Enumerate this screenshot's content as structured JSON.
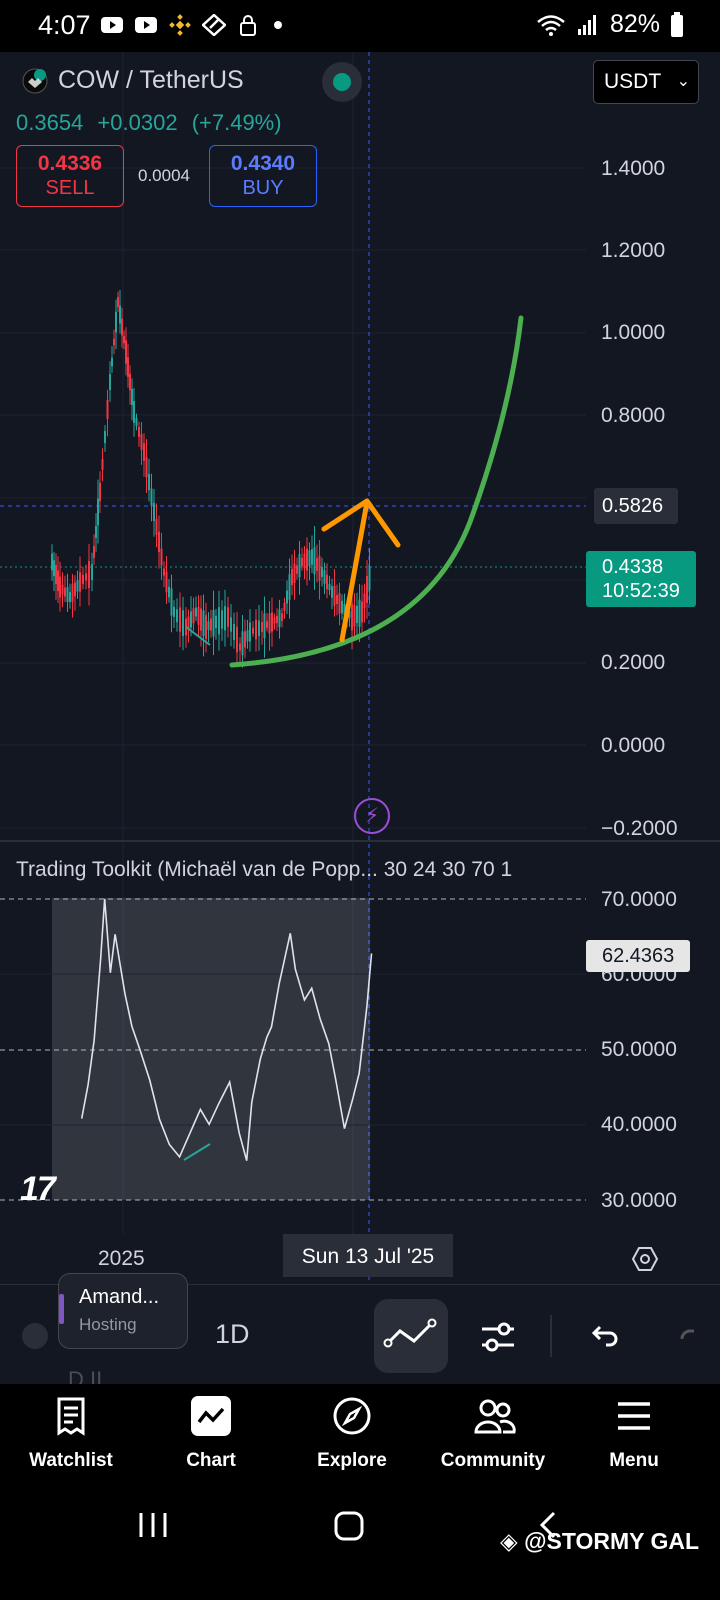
{
  "status_bar": {
    "time": "4:07",
    "battery": "82%",
    "icons": [
      "youtube-icon",
      "youtube-icon",
      "binance-icon",
      "app-icon",
      "lock-icon",
      "dot-icon",
      "wifi-icon",
      "signal-icon",
      "battery-icon"
    ]
  },
  "symbol": {
    "name": "COW / TetherUS",
    "last": "0.3654",
    "change": "+0.0302",
    "change_pct": "(+7.49%)"
  },
  "trade": {
    "sell_price": "0.4336",
    "sell_label": "SELL",
    "spread": "0.0004",
    "buy_price": "0.4340",
    "buy_label": "BUY"
  },
  "currency_select": {
    "value": "USDT"
  },
  "price_axis": [
    "1.4000",
    "1.2000",
    "1.0000",
    "0.8000",
    "0.2000",
    "0.0000",
    "−0.2000"
  ],
  "crosshair_price": "0.5826",
  "live_price": {
    "price": "0.4338",
    "countdown": "10:52:39"
  },
  "indicator": {
    "title": "Trading Toolkit (Michaël van de Popp... 30 24 30 70 1",
    "axis": [
      "70.0000",
      "60.0000",
      "50.0000",
      "40.0000",
      "30.0000"
    ],
    "current_value": "62.4363"
  },
  "time_axis": {
    "label_2025": "2025",
    "crosshair_date": "Sun 13 Jul '25"
  },
  "toolbar": {
    "account_name": "Amand...",
    "account_sub": "Hosting",
    "interval": "1D",
    "ghost_text": "D II"
  },
  "bottom_nav": [
    {
      "label": "Watchlist",
      "icon": "watchlist-icon"
    },
    {
      "label": "Chart",
      "icon": "chart-icon"
    },
    {
      "label": "Explore",
      "icon": "compass-icon"
    },
    {
      "label": "Community",
      "icon": "community-icon"
    },
    {
      "label": "Menu",
      "icon": "menu-icon"
    }
  ],
  "watermark": "@STORMY GAL",
  "colors": {
    "up": "#26a69a",
    "down": "#f23645",
    "curve": "#4caf50",
    "arrow": "#ff9800",
    "background": "#131722"
  }
}
